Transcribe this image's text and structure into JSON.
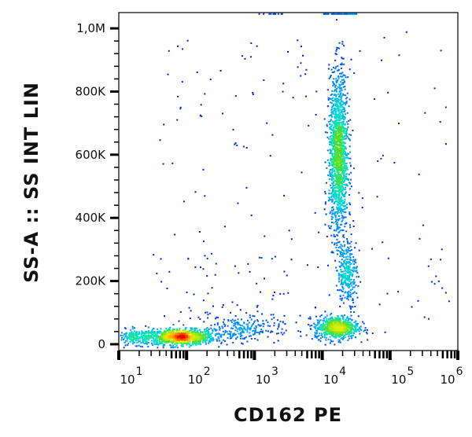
{
  "chart_data": {
    "type": "scatter",
    "style": "density dot plot (pseudocolor: blue low → cyan → green → yellow → red high)",
    "xlabel": "CD162 PE",
    "ylabel": "SS-A :: SS INT LIN",
    "x_scale": "log",
    "xlim": [
      10,
      1000000
    ],
    "ylim": [
      -20000,
      1050000
    ],
    "x_ticks": [
      {
        "value": 10,
        "base": "10",
        "exp": "1"
      },
      {
        "value": 100,
        "base": "10",
        "exp": "2"
      },
      {
        "value": 1000,
        "base": "10",
        "exp": "3"
      },
      {
        "value": 10000,
        "base": "10",
        "exp": "4"
      },
      {
        "value": 100000,
        "base": "10",
        "exp": "5"
      },
      {
        "value": 1000000,
        "base": "10",
        "exp": "6"
      }
    ],
    "y_ticks": [
      {
        "value": 0,
        "label": "0"
      },
      {
        "value": 200000,
        "label": "200K"
      },
      {
        "value": 400000,
        "label": "400K"
      },
      {
        "value": 600000,
        "label": "600K"
      },
      {
        "value": 800000,
        "label": "800K"
      },
      {
        "value": 1000000,
        "label": "1,0M"
      }
    ],
    "grid": false,
    "populations": [
      {
        "x_center": 80,
        "y_center": 25000,
        "x_log_sd": 0.25,
        "y_sd": 12000,
        "count": 1100,
        "peak_density": "red"
      },
      {
        "x_center": 18,
        "y_center": 25000,
        "x_log_sd": 0.15,
        "y_sd": 12000,
        "count": 200,
        "peak_density": "cyan"
      },
      {
        "x_center": 600,
        "y_center": 50000,
        "x_log_sd": 0.3,
        "y_sd": 20000,
        "count": 220,
        "peak_density": "blue"
      },
      {
        "x_center": 16000,
        "y_center": 55000,
        "x_log_sd": 0.16,
        "y_sd": 18000,
        "count": 700,
        "peak_density": "green"
      },
      {
        "x_center": 17000,
        "y_center": 600000,
        "x_log_sd": 0.07,
        "y_sd": 130000,
        "count": 1500,
        "peak_density": "yellow-green"
      },
      {
        "x_center": 23000,
        "y_center": 230000,
        "x_log_sd": 0.07,
        "y_sd": 50000,
        "count": 300,
        "peak_density": "cyan"
      }
    ],
    "legend": "none"
  }
}
